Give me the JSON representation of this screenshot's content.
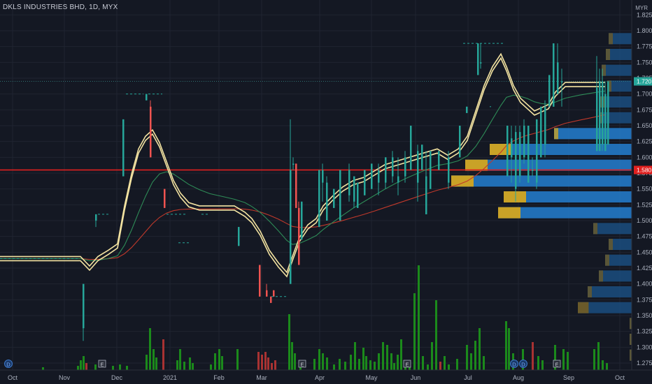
{
  "header": {
    "symbol_title": "DKLS INDUSTRIES BHD, 1D, MYX",
    "currency": "MYR"
  },
  "price_axis": {
    "min": 1.26,
    "max": 1.835,
    "ticks": [
      "1.825",
      "1.800",
      "1.775",
      "1.750",
      "1.725",
      "1.700",
      "1.675",
      "1.650",
      "1.625",
      "1.600",
      "1.575",
      "1.550",
      "1.525",
      "1.500",
      "1.475",
      "1.450",
      "1.425",
      "1.400",
      "1.375",
      "1.350",
      "1.325",
      "1.300",
      "1.275"
    ],
    "last_price_label": "1.720",
    "horizontal_line_label": "1.580"
  },
  "time_axis": {
    "labels": [
      "Oct",
      "Nov",
      "Dec",
      "2021",
      "Feb",
      "Mar",
      "Apr",
      "May",
      "Jun",
      "Jul",
      "Aug",
      "Sep",
      "Oct"
    ]
  },
  "colors": {
    "background": "#141823",
    "grid": "#1f2431",
    "up": "#26a69a",
    "down": "#ef5350",
    "volume_up": "#1b8a1b",
    "volume_down": "#a83232",
    "ma_yellow": "#f3e3a1",
    "ma_green": "#2e8b57",
    "ma_red": "#c0392b",
    "support_line": "#e0201f",
    "vp_blue": "#1f6fb8",
    "vp_gold": "#c9a227"
  },
  "event_markers": [
    {
      "type": "dividend",
      "glyph": "D"
    },
    {
      "type": "earnings",
      "glyph": "E"
    },
    {
      "type": "earnings",
      "glyph": "E"
    },
    {
      "type": "earnings",
      "glyph": "E"
    },
    {
      "type": "dividend",
      "glyph": "D"
    },
    {
      "type": "dividend",
      "glyph": "D"
    },
    {
      "type": "earnings",
      "glyph": "E"
    }
  ],
  "chart_data": {
    "type": "candlestick",
    "title": "DKLS INDUSTRIES BHD, 1D, MYX",
    "ylim": [
      1.26,
      1.835
    ],
    "support_level": 1.58,
    "last_price": 1.72,
    "price_path": [
      [
        0,
        1.44
      ],
      [
        20,
        1.44
      ],
      [
        40,
        1.44
      ],
      [
        60,
        1.44
      ],
      [
        80,
        1.44
      ],
      [
        100,
        1.44
      ],
      [
        115,
        1.44
      ],
      [
        128,
        1.425
      ],
      [
        140,
        1.44
      ],
      [
        155,
        1.45
      ],
      [
        168,
        1.46
      ],
      [
        178,
        1.52
      ],
      [
        188,
        1.57
      ],
      [
        198,
        1.61
      ],
      [
        208,
        1.63
      ],
      [
        218,
        1.64
      ],
      [
        228,
        1.62
      ],
      [
        238,
        1.59
      ],
      [
        248,
        1.56
      ],
      [
        258,
        1.54
      ],
      [
        270,
        1.525
      ],
      [
        285,
        1.52
      ],
      [
        300,
        1.52
      ],
      [
        320,
        1.52
      ],
      [
        335,
        1.52
      ],
      [
        350,
        1.51
      ],
      [
        360,
        1.5
      ],
      [
        372,
        1.48
      ],
      [
        385,
        1.45
      ],
      [
        398,
        1.43
      ],
      [
        410,
        1.415
      ],
      [
        418,
        1.44
      ],
      [
        428,
        1.47
      ],
      [
        440,
        1.49
      ],
      [
        452,
        1.5
      ],
      [
        462,
        1.52
      ],
      [
        475,
        1.535
      ],
      [
        490,
        1.55
      ],
      [
        505,
        1.56
      ],
      [
        520,
        1.565
      ],
      [
        535,
        1.575
      ],
      [
        550,
        1.585
      ],
      [
        565,
        1.59
      ],
      [
        580,
        1.595
      ],
      [
        595,
        1.6
      ],
      [
        610,
        1.605
      ],
      [
        625,
        1.61
      ],
      [
        640,
        1.6
      ],
      [
        655,
        1.61
      ],
      [
        668,
        1.63
      ],
      [
        680,
        1.67
      ],
      [
        692,
        1.71
      ],
      [
        704,
        1.74
      ],
      [
        716,
        1.76
      ],
      [
        724,
        1.74
      ],
      [
        734,
        1.71
      ],
      [
        744,
        1.69
      ],
      [
        754,
        1.68
      ],
      [
        764,
        1.67
      ],
      [
        774,
        1.675
      ],
      [
        784,
        1.68
      ],
      [
        794,
        1.7
      ],
      [
        808,
        1.715
      ],
      [
        828,
        1.715
      ],
      [
        848,
        1.715
      ],
      [
        865,
        1.715
      ]
    ],
    "moving_averages": [
      {
        "color": "#f3e3a1"
      },
      {
        "color": "#2e8b57"
      },
      {
        "color": "#c0392b"
      }
    ]
  }
}
